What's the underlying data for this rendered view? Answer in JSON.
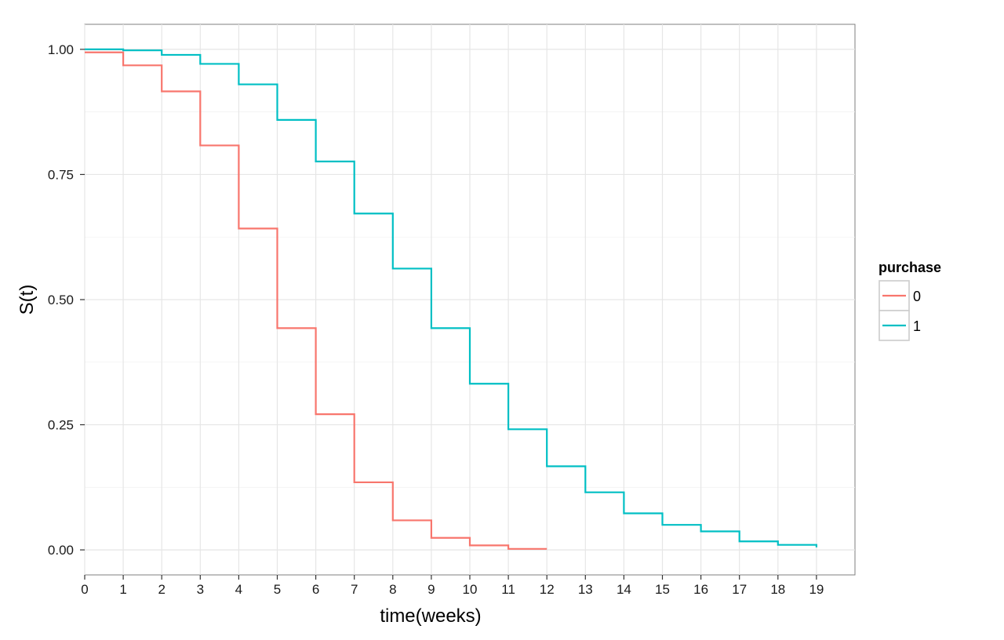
{
  "chart_data": {
    "type": "line",
    "step": true,
    "title": "",
    "xlabel": "time(weeks)",
    "ylabel": "S(t)",
    "xlim": [
      0,
      20
    ],
    "ylim": [
      -0.05,
      1.05
    ],
    "x_ticks": [
      "0",
      "1",
      "2",
      "3",
      "4",
      "5",
      "6",
      "7",
      "8",
      "9",
      "10",
      "11",
      "12",
      "13",
      "14",
      "15",
      "16",
      "17",
      "18",
      "19"
    ],
    "y_ticks": [
      "0.00",
      "0.25",
      "0.50",
      "0.75",
      "1.00"
    ],
    "grid": true,
    "legend": {
      "title": "purchase",
      "position": "right"
    },
    "series": [
      {
        "name": "0",
        "color": "#F8766D",
        "x": [
          0,
          1,
          2,
          3,
          4,
          5,
          6,
          7,
          8,
          9,
          10,
          11,
          12
        ],
        "y": [
          0.994,
          0.968,
          0.916,
          0.808,
          0.642,
          0.443,
          0.271,
          0.135,
          0.059,
          0.024,
          0.009,
          0.002,
          0.002
        ]
      },
      {
        "name": "1",
        "color": "#00BFC4",
        "x": [
          0,
          1,
          2,
          3,
          4,
          5,
          6,
          7,
          8,
          9,
          10,
          11,
          12,
          13,
          14,
          15,
          16,
          17,
          18,
          19
        ],
        "y": [
          1.0,
          0.998,
          0.989,
          0.971,
          0.93,
          0.859,
          0.776,
          0.672,
          0.562,
          0.443,
          0.332,
          0.241,
          0.167,
          0.115,
          0.073,
          0.05,
          0.037,
          0.017,
          0.01,
          0.005
        ]
      }
    ]
  }
}
